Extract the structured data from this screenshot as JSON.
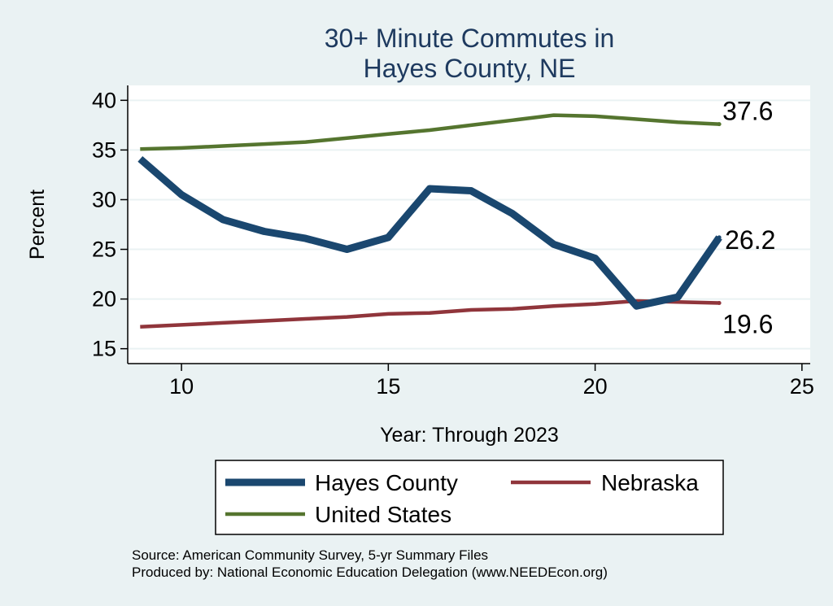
{
  "chart_data": {
    "type": "line",
    "title": [
      "30+ Minute Commutes in",
      "Hayes County, NE"
    ],
    "xlabel": "Year: Through 2023",
    "ylabel": "Percent",
    "xlim": [
      8.7,
      25.2
    ],
    "ylim": [
      13.5,
      41.5
    ],
    "xticks": [
      10,
      15,
      20,
      25
    ],
    "yticks": [
      15,
      20,
      25,
      30,
      35,
      40
    ],
    "series": [
      {
        "name": "Hayes County",
        "color": "#1a476f",
        "x": [
          9,
          10,
          11,
          12,
          13,
          14,
          15,
          16,
          17,
          18,
          19,
          20,
          21,
          22,
          23
        ],
        "y": [
          34.1,
          30.5,
          28.0,
          26.8,
          26.1,
          25.0,
          26.2,
          31.1,
          30.9,
          28.6,
          25.5,
          24.1,
          19.3,
          20.2,
          26.2
        ],
        "end_label": "26.2"
      },
      {
        "name": "Nebraska",
        "color": "#90353b",
        "x": [
          9,
          10,
          11,
          12,
          13,
          14,
          15,
          16,
          17,
          18,
          19,
          20,
          21,
          22,
          23
        ],
        "y": [
          17.2,
          17.4,
          17.6,
          17.8,
          18.0,
          18.2,
          18.5,
          18.6,
          18.9,
          19.0,
          19.3,
          19.5,
          19.8,
          19.7,
          19.6
        ],
        "end_label": "19.6"
      },
      {
        "name": "United States",
        "color": "#55752f",
        "x": [
          9,
          10,
          11,
          12,
          13,
          14,
          15,
          16,
          17,
          18,
          19,
          20,
          21,
          22,
          23
        ],
        "y": [
          35.1,
          35.2,
          35.4,
          35.6,
          35.8,
          36.2,
          36.6,
          37.0,
          37.5,
          38.0,
          38.5,
          38.4,
          38.1,
          37.8,
          37.6
        ],
        "end_label": "37.6"
      }
    ],
    "legend": {
      "placement": "bottom",
      "entries": [
        "Hayes County",
        "Nebraska",
        "United States"
      ]
    },
    "notes": [
      "Source: American Community Survey, 5-yr Summary Files",
      "Produced by: National Economic Education Delegation (www.NEEDEcon.org)"
    ],
    "colors": {
      "background": "#eaf2f3",
      "plot_background": "#ffffff",
      "title": "#1e3a5f"
    }
  }
}
